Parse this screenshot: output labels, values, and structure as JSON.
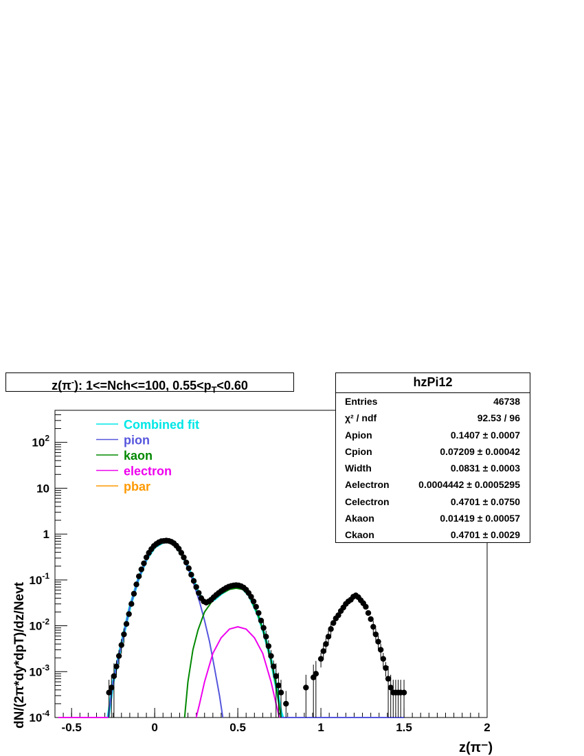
{
  "title": {
    "prefix": "z(π",
    "sup": "-",
    "middle": "): 1<=Nch<=100, 0.55<p",
    "sub": "T",
    "suffix": "<0.60"
  },
  "stats": {
    "name": "hzPi12",
    "rows": [
      {
        "key": "Entries",
        "value": "46738"
      },
      {
        "key": "χ² / ndf",
        "value": "92.53 / 96"
      },
      {
        "key": "Apion",
        "value": "0.1407 ± 0.0007"
      },
      {
        "key": "Cpion",
        "value": "0.07209 ± 0.00042"
      },
      {
        "key": "Width",
        "value": "0.0831 ± 0.0003"
      },
      {
        "key": "Aelectron",
        "value": "0.0004442 ± 0.0005295"
      },
      {
        "key": "Celectron",
        "value": "0.4701 ± 0.0750"
      },
      {
        "key": "Akaon",
        "value": "0.01419 ± 0.00057"
      },
      {
        "key": "Ckaon",
        "value": "0.4701 ± 0.0029"
      }
    ]
  },
  "chart_data": {
    "type": "scatter",
    "xlabel": "z(π⁻)",
    "ylabel": "dN/(2π*dy*dpT)/dz/Nevt",
    "xlim": [
      -0.6,
      2.0
    ],
    "ylim": [
      0.0001,
      500
    ],
    "yscale": "log",
    "x_ticks": [
      -0.5,
      0,
      0.5,
      1,
      1.5,
      2
    ],
    "x_tick_labels": [
      "-0.5",
      "0",
      "0.5",
      "1",
      "1.5",
      "2"
    ],
    "y_ticks": [
      0.0001,
      0.001,
      0.01,
      0.1,
      1,
      10,
      100
    ],
    "y_tick_labels": [
      {
        "base": "10",
        "exp": "-4"
      },
      {
        "base": "10",
        "exp": "-3"
      },
      {
        "base": "10",
        "exp": "-2"
      },
      {
        "base": "10",
        "exp": "-1"
      },
      {
        "base": "1",
        "exp": ""
      },
      {
        "base": "10",
        "exp": ""
      },
      {
        "base": "10",
        "exp": "2"
      }
    ],
    "legend": [
      {
        "name": "Combined fit",
        "color": "#00e6e6"
      },
      {
        "name": "pion",
        "color": "#5555dd"
      },
      {
        "name": "kaon",
        "color": "#008800"
      },
      {
        "name": "electron",
        "color": "#ee00ee"
      },
      {
        "name": "pbar",
        "color": "#ff9900"
      }
    ],
    "points": [
      [
        -0.275,
        0.00035
      ],
      [
        -0.26,
        0.00045
      ],
      [
        -0.245,
        0.0008
      ],
      [
        -0.23,
        0.0013
      ],
      [
        -0.215,
        0.0022
      ],
      [
        -0.2,
        0.0038
      ],
      [
        -0.185,
        0.0065
      ],
      [
        -0.17,
        0.011
      ],
      [
        -0.155,
        0.018
      ],
      [
        -0.14,
        0.03
      ],
      [
        -0.125,
        0.05
      ],
      [
        -0.11,
        0.08
      ],
      [
        -0.095,
        0.12
      ],
      [
        -0.08,
        0.17
      ],
      [
        -0.065,
        0.23
      ],
      [
        -0.05,
        0.31
      ],
      [
        -0.035,
        0.39
      ],
      [
        -0.02,
        0.47
      ],
      [
        -0.005,
        0.55
      ],
      [
        0.01,
        0.61
      ],
      [
        0.025,
        0.66
      ],
      [
        0.04,
        0.7
      ],
      [
        0.055,
        0.71
      ],
      [
        0.07,
        0.72
      ],
      [
        0.085,
        0.71
      ],
      [
        0.1,
        0.68
      ],
      [
        0.115,
        0.63
      ],
      [
        0.13,
        0.56
      ],
      [
        0.145,
        0.48
      ],
      [
        0.16,
        0.39
      ],
      [
        0.175,
        0.31
      ],
      [
        0.19,
        0.24
      ],
      [
        0.205,
        0.18
      ],
      [
        0.22,
        0.13
      ],
      [
        0.235,
        0.095
      ],
      [
        0.25,
        0.07
      ],
      [
        0.265,
        0.052
      ],
      [
        0.28,
        0.04
      ],
      [
        0.295,
        0.034
      ],
      [
        0.31,
        0.032
      ],
      [
        0.325,
        0.034
      ],
      [
        0.34,
        0.037
      ],
      [
        0.355,
        0.042
      ],
      [
        0.37,
        0.047
      ],
      [
        0.385,
        0.052
      ],
      [
        0.4,
        0.057
      ],
      [
        0.415,
        0.062
      ],
      [
        0.43,
        0.067
      ],
      [
        0.445,
        0.071
      ],
      [
        0.46,
        0.074
      ],
      [
        0.475,
        0.076
      ],
      [
        0.49,
        0.077
      ],
      [
        0.505,
        0.076
      ],
      [
        0.52,
        0.073
      ],
      [
        0.535,
        0.068
      ],
      [
        0.55,
        0.061
      ],
      [
        0.565,
        0.052
      ],
      [
        0.58,
        0.043
      ],
      [
        0.595,
        0.034
      ],
      [
        0.61,
        0.026
      ],
      [
        0.625,
        0.019
      ],
      [
        0.64,
        0.013
      ],
      [
        0.655,
        0.009
      ],
      [
        0.67,
        0.0058
      ],
      [
        0.685,
        0.0036
      ],
      [
        0.7,
        0.0022
      ],
      [
        0.715,
        0.0013
      ],
      [
        0.73,
        0.0008
      ],
      [
        0.745,
        0.0005
      ],
      [
        0.76,
        0.00035
      ],
      [
        0.79,
        0.0002
      ],
      [
        0.91,
        0.00045
      ],
      [
        0.955,
        0.00075
      ],
      [
        0.97,
        0.0009
      ],
      [
        1.0,
        0.0019
      ],
      [
        1.015,
        0.0028
      ],
      [
        1.03,
        0.004
      ],
      [
        1.045,
        0.0058
      ],
      [
        1.06,
        0.0085
      ],
      [
        1.075,
        0.0115
      ],
      [
        1.09,
        0.0145
      ],
      [
        1.105,
        0.017
      ],
      [
        1.12,
        0.021
      ],
      [
        1.135,
        0.025
      ],
      [
        1.15,
        0.03
      ],
      [
        1.165,
        0.034
      ],
      [
        1.18,
        0.037
      ],
      [
        1.195,
        0.043
      ],
      [
        1.21,
        0.046
      ],
      [
        1.225,
        0.042
      ],
      [
        1.24,
        0.036
      ],
      [
        1.255,
        0.031
      ],
      [
        1.27,
        0.026
      ],
      [
        1.285,
        0.019
      ],
      [
        1.3,
        0.014
      ],
      [
        1.315,
        0.0095
      ],
      [
        1.33,
        0.0065
      ],
      [
        1.345,
        0.0045
      ],
      [
        1.36,
        0.003
      ],
      [
        1.375,
        0.0019
      ],
      [
        1.39,
        0.0012
      ],
      [
        1.405,
        0.0007
      ],
      [
        1.42,
        0.00045
      ],
      [
        1.435,
        0.00035
      ],
      [
        1.45,
        0.00035
      ],
      [
        1.465,
        0.00035
      ],
      [
        1.48,
        0.00035
      ],
      [
        1.5,
        0.00035
      ]
    ],
    "curves": [
      {
        "name": "Combined fit",
        "color": "#00e6e6",
        "width": 4,
        "points": [
          [
            -0.28,
            0.0001
          ],
          [
            -0.25,
            0.0006
          ],
          [
            -0.2,
            0.004
          ],
          [
            -0.15,
            0.025
          ],
          [
            -0.1,
            0.1
          ],
          [
            -0.05,
            0.28
          ],
          [
            0.0,
            0.52
          ],
          [
            0.05,
            0.66
          ],
          [
            0.08,
            0.68
          ],
          [
            0.12,
            0.6
          ],
          [
            0.17,
            0.33
          ],
          [
            0.22,
            0.13
          ],
          [
            0.26,
            0.055
          ],
          [
            0.29,
            0.035
          ],
          [
            0.32,
            0.031
          ],
          [
            0.36,
            0.038
          ],
          [
            0.4,
            0.05
          ],
          [
            0.45,
            0.065
          ],
          [
            0.49,
            0.07
          ],
          [
            0.53,
            0.065
          ],
          [
            0.57,
            0.045
          ],
          [
            0.62,
            0.018
          ],
          [
            0.66,
            0.0065
          ],
          [
            0.7,
            0.0018
          ],
          [
            0.73,
            0.0005
          ],
          [
            0.76,
            0.00013
          ],
          [
            0.77,
            0.0001
          ]
        ]
      },
      {
        "name": "pion",
        "color": "#5555dd",
        "width": 2,
        "points": [
          [
            -0.28,
            0.0001
          ],
          [
            -0.25,
            0.0006
          ],
          [
            -0.2,
            0.004
          ],
          [
            -0.15,
            0.025
          ],
          [
            -0.1,
            0.1
          ],
          [
            -0.05,
            0.28
          ],
          [
            0.0,
            0.52
          ],
          [
            0.05,
            0.66
          ],
          [
            0.08,
            0.68
          ],
          [
            0.12,
            0.6
          ],
          [
            0.17,
            0.33
          ],
          [
            0.22,
            0.12
          ],
          [
            0.27,
            0.033
          ],
          [
            0.3,
            0.013
          ],
          [
            0.33,
            0.0045
          ],
          [
            0.36,
            0.0012
          ],
          [
            0.39,
            0.0003
          ],
          [
            0.41,
            0.0001
          ]
        ]
      },
      {
        "name": "kaon",
        "color": "#008800",
        "width": 2,
        "points": [
          [
            0.18,
            0.0001
          ],
          [
            0.2,
            0.0006
          ],
          [
            0.23,
            0.003
          ],
          [
            0.26,
            0.008
          ],
          [
            0.3,
            0.02
          ],
          [
            0.35,
            0.036
          ],
          [
            0.4,
            0.05
          ],
          [
            0.45,
            0.062
          ],
          [
            0.49,
            0.066
          ],
          [
            0.53,
            0.062
          ],
          [
            0.57,
            0.045
          ],
          [
            0.62,
            0.018
          ],
          [
            0.66,
            0.0065
          ],
          [
            0.7,
            0.0018
          ],
          [
            0.73,
            0.0005
          ],
          [
            0.76,
            0.0001
          ]
        ]
      },
      {
        "name": "electron",
        "color": "#ee00ee",
        "width": 2,
        "points": [
          [
            0.25,
            0.0001
          ],
          [
            0.27,
            0.0002
          ],
          [
            0.3,
            0.0006
          ],
          [
            0.35,
            0.0025
          ],
          [
            0.4,
            0.0055
          ],
          [
            0.45,
            0.0085
          ],
          [
            0.5,
            0.0095
          ],
          [
            0.55,
            0.0085
          ],
          [
            0.6,
            0.0055
          ],
          [
            0.65,
            0.0025
          ],
          [
            0.7,
            0.0006
          ],
          [
            0.73,
            0.0002
          ],
          [
            0.75,
            0.0001
          ]
        ]
      },
      {
        "name": "floor-left",
        "color": "#ee00ee",
        "width": 2,
        "points": [
          [
            -0.58,
            0.0001
          ],
          [
            -0.28,
            0.0001
          ]
        ]
      },
      {
        "name": "floor-right",
        "color": "#5555dd",
        "width": 2,
        "points": [
          [
            0.76,
            0.0001
          ],
          [
            1.5,
            0.0001
          ]
        ]
      }
    ]
  }
}
